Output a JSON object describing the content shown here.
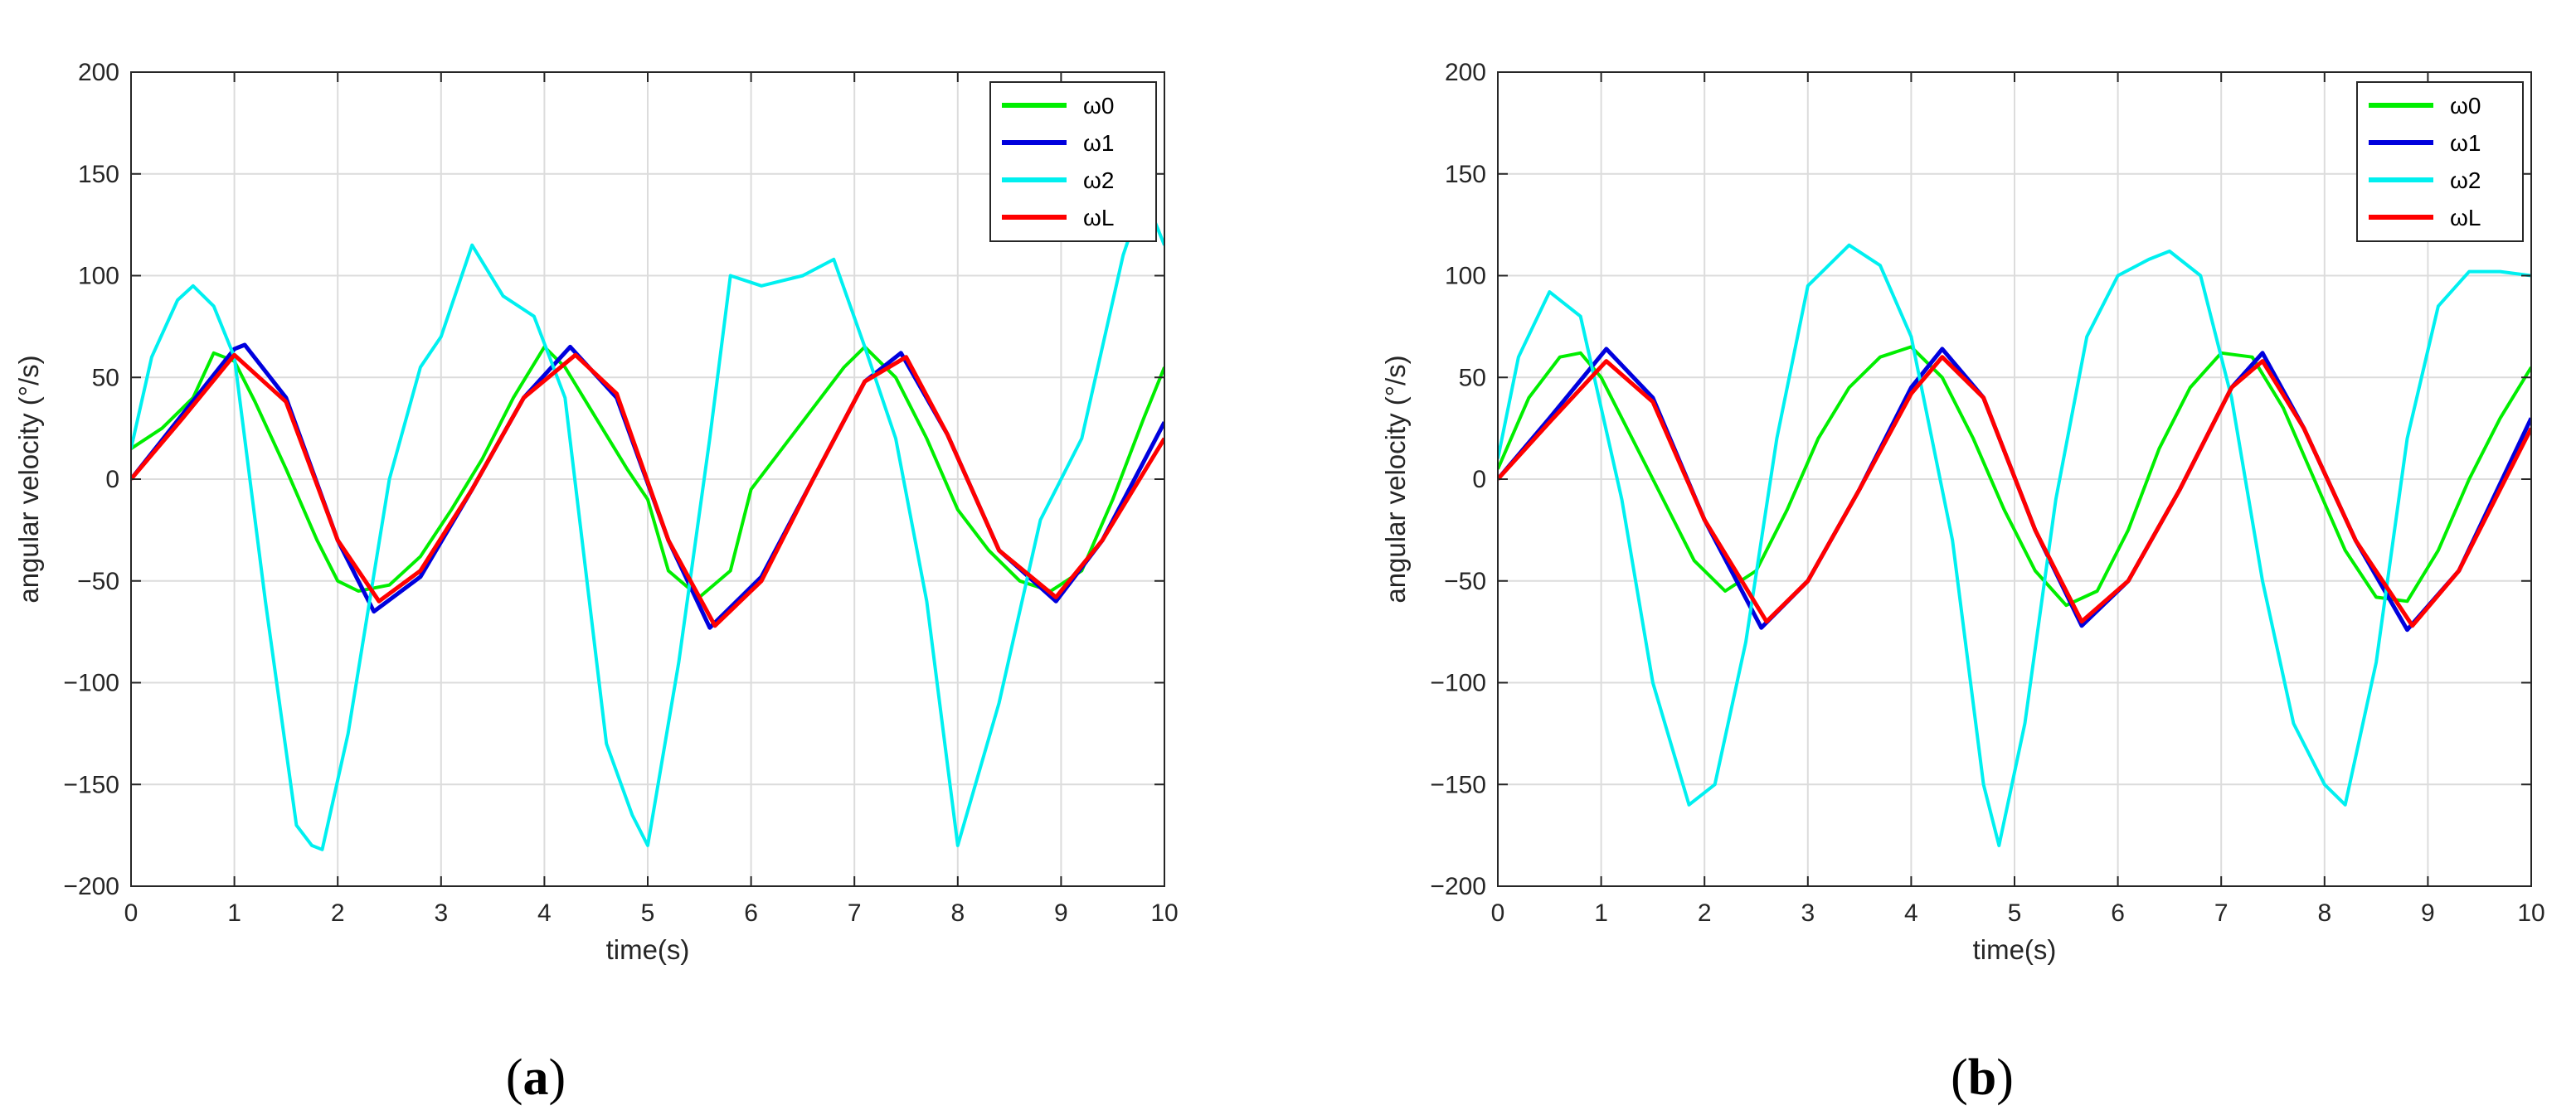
{
  "figure": {
    "captions": [
      "a",
      "b"
    ]
  },
  "series_colors": {
    "ω0": "#00ee00",
    "ω1": "#0000dd",
    "ω2": "#00f0f0",
    "ωL": "#ff0000"
  },
  "chart_data": [
    {
      "type": "line",
      "panel": "a",
      "xlabel": "time(s)",
      "ylabel": "angular velocity (°/s)",
      "xlim": [
        0,
        10
      ],
      "ylim": [
        -200,
        200
      ],
      "xticks": [
        "0",
        "1",
        "2",
        "3",
        "4",
        "5",
        "6",
        "7",
        "8",
        "9",
        "10"
      ],
      "yticks": [
        "200",
        "150",
        "100",
        "50",
        "0",
        "−50",
        "−100",
        "−150",
        "−200"
      ],
      "grid": true,
      "legend_position": "top-right",
      "series": [
        {
          "name": "ω0",
          "x": [
            0,
            0.3,
            0.6,
            0.8,
            1.0,
            1.2,
            1.5,
            1.8,
            2.0,
            2.2,
            2.5,
            2.8,
            3.1,
            3.4,
            3.7,
            4.0,
            4.2,
            4.5,
            4.8,
            5.0,
            5.2,
            5.5,
            5.8,
            6.0,
            6.3,
            6.6,
            6.9,
            7.1,
            7.4,
            7.7,
            8.0,
            8.3,
            8.6,
            8.9,
            9.2,
            9.5,
            9.8,
            10.0
          ],
          "y": [
            15,
            25,
            40,
            62,
            58,
            38,
            5,
            -30,
            -50,
            -55,
            -52,
            -38,
            -15,
            10,
            40,
            65,
            55,
            30,
            5,
            -10,
            -45,
            -58,
            -45,
            -5,
            15,
            35,
            55,
            65,
            50,
            20,
            -15,
            -35,
            -50,
            -55,
            -45,
            -10,
            30,
            55
          ]
        },
        {
          "name": "ω1",
          "x": [
            0,
            0.5,
            1.0,
            1.1,
            1.5,
            2.0,
            2.35,
            2.8,
            3.3,
            3.8,
            4.25,
            4.7,
            5.2,
            5.6,
            6.1,
            6.6,
            7.1,
            7.45,
            7.9,
            8.4,
            8.95,
            9.4,
            10.0
          ],
          "y": [
            0,
            32,
            64,
            66,
            40,
            -30,
            -65,
            -48,
            -5,
            40,
            65,
            40,
            -30,
            -73,
            -48,
            0,
            48,
            62,
            22,
            -35,
            -60,
            -30,
            28
          ]
        },
        {
          "name": "ω2",
          "x": [
            0,
            0.2,
            0.45,
            0.6,
            0.8,
            1.0,
            1.3,
            1.6,
            1.75,
            1.85,
            2.1,
            2.5,
            2.8,
            3.0,
            3.3,
            3.6,
            3.9,
            4.2,
            4.6,
            4.85,
            5.0,
            5.3,
            5.6,
            5.8,
            6.1,
            6.5,
            6.8,
            7.1,
            7.4,
            7.7,
            8.0,
            8.4,
            8.8,
            9.2,
            9.6,
            9.8,
            10.0
          ],
          "y": [
            15,
            60,
            88,
            95,
            85,
            60,
            -60,
            -170,
            -180,
            -182,
            -125,
            0,
            55,
            70,
            115,
            90,
            80,
            40,
            -130,
            -165,
            -180,
            -90,
            20,
            100,
            95,
            100,
            108,
            65,
            20,
            -60,
            -180,
            -110,
            -20,
            20,
            110,
            140,
            115
          ]
        },
        {
          "name": "ωL",
          "x": [
            0,
            0.5,
            1.0,
            1.5,
            2.0,
            2.4,
            2.8,
            3.3,
            3.8,
            4.3,
            4.7,
            5.2,
            5.65,
            6.1,
            6.6,
            7.1,
            7.5,
            7.9,
            8.4,
            8.95,
            9.4,
            10.0
          ],
          "y": [
            0,
            30,
            61,
            38,
            -30,
            -60,
            -45,
            -5,
            40,
            61,
            42,
            -30,
            -72,
            -50,
            0,
            48,
            60,
            22,
            -35,
            -58,
            -30,
            20
          ]
        }
      ]
    },
    {
      "type": "line",
      "panel": "b",
      "xlabel": "time(s)",
      "ylabel": "angular velocity (°/s)",
      "xlim": [
        0,
        10
      ],
      "ylim": [
        -200,
        200
      ],
      "xticks": [
        "0",
        "1",
        "2",
        "3",
        "4",
        "5",
        "6",
        "7",
        "8",
        "9",
        "10"
      ],
      "yticks": [
        "200",
        "150",
        "100",
        "50",
        "0",
        "−50",
        "−100",
        "−150",
        "−200"
      ],
      "grid": true,
      "legend_position": "top-right",
      "series": [
        {
          "name": "ω0",
          "x": [
            0,
            0.3,
            0.6,
            0.8,
            1.0,
            1.3,
            1.6,
            1.9,
            2.2,
            2.5,
            2.8,
            3.1,
            3.4,
            3.7,
            4.0,
            4.3,
            4.6,
            4.9,
            5.2,
            5.5,
            5.8,
            6.1,
            6.4,
            6.7,
            7.0,
            7.3,
            7.6,
            7.9,
            8.2,
            8.5,
            8.8,
            9.1,
            9.4,
            9.7,
            10.0
          ],
          "y": [
            5,
            40,
            60,
            62,
            50,
            20,
            -10,
            -40,
            -55,
            -45,
            -15,
            20,
            45,
            60,
            65,
            50,
            20,
            -15,
            -45,
            -62,
            -55,
            -25,
            15,
            45,
            62,
            60,
            35,
            0,
            -35,
            -58,
            -60,
            -35,
            0,
            30,
            55
          ]
        },
        {
          "name": "ω1",
          "x": [
            0,
            0.5,
            1.05,
            1.5,
            2.0,
            2.55,
            3.0,
            3.5,
            4.0,
            4.3,
            4.7,
            5.2,
            5.65,
            6.1,
            6.6,
            7.1,
            7.4,
            7.8,
            8.3,
            8.8,
            9.3,
            10.0
          ],
          "y": [
            0,
            30,
            64,
            40,
            -20,
            -73,
            -50,
            -5,
            45,
            64,
            40,
            -25,
            -72,
            -50,
            -5,
            45,
            62,
            25,
            -30,
            -74,
            -45,
            30
          ]
        },
        {
          "name": "ω2",
          "x": [
            0,
            0.2,
            0.5,
            0.8,
            1.2,
            1.5,
            1.85,
            2.1,
            2.4,
            2.7,
            3.0,
            3.4,
            3.7,
            4.0,
            4.4,
            4.7,
            4.85,
            5.1,
            5.4,
            5.7,
            6.0,
            6.3,
            6.5,
            6.8,
            7.1,
            7.4,
            7.7,
            8.0,
            8.2,
            8.5,
            8.8,
            9.1,
            9.4,
            9.7,
            10.0
          ],
          "y": [
            10,
            60,
            92,
            80,
            -10,
            -100,
            -160,
            -150,
            -80,
            20,
            95,
            115,
            105,
            70,
            -30,
            -150,
            -180,
            -120,
            -10,
            70,
            100,
            108,
            112,
            100,
            40,
            -50,
            -120,
            -150,
            -160,
            -90,
            20,
            85,
            102,
            102,
            100
          ]
        },
        {
          "name": "ωL",
          "x": [
            0,
            0.5,
            1.05,
            1.5,
            2.0,
            2.6,
            3.0,
            3.5,
            4.0,
            4.3,
            4.7,
            5.2,
            5.65,
            6.1,
            6.6,
            7.1,
            7.4,
            7.8,
            8.3,
            8.85,
            9.3,
            10.0
          ],
          "y": [
            0,
            28,
            58,
            38,
            -20,
            -70,
            -50,
            -5,
            42,
            60,
            40,
            -25,
            -70,
            -50,
            -5,
            45,
            58,
            25,
            -30,
            -72,
            -45,
            25
          ]
        }
      ]
    }
  ]
}
